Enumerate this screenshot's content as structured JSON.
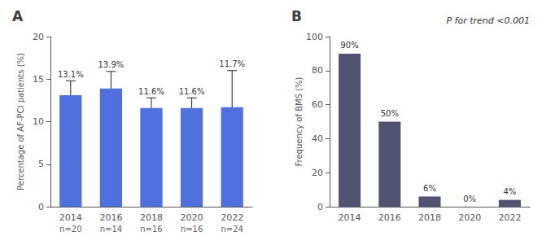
{
  "chart_data": [
    {
      "type": "bar",
      "title": "A",
      "categories": [
        "2014",
        "2016",
        "2018",
        "2020",
        "2022"
      ],
      "values": [
        13.1,
        13.9,
        11.6,
        11.6,
        11.7
      ],
      "value_labels": [
        "13.1%",
        "13.9%",
        "11.6%",
        "11.6%",
        "11.7%"
      ],
      "data_labels": true,
      "errors_lower": [
        1.1,
        1.4,
        1.0,
        1.0,
        1.2
      ],
      "errors_upper": [
        1.7,
        2.0,
        1.2,
        1.2,
        4.3
      ],
      "n_labels": [
        "n=20",
        "n=14",
        "n=16",
        "n=16",
        "n=24"
      ],
      "ylabel": "Percentage of AF-PCI patients (%)",
      "ylim": [
        0,
        20
      ],
      "yticks": [
        0,
        5,
        10,
        15,
        20
      ],
      "grid": false
    },
    {
      "type": "bar",
      "title": "B",
      "categories": [
        "2014",
        "2016",
        "2018",
        "2020",
        "2022"
      ],
      "values": [
        90,
        50,
        6,
        0,
        4
      ],
      "value_labels": [
        "90%",
        "50%",
        "6%",
        "0%",
        "4%"
      ],
      "data_labels": true,
      "ylabel": "Frequency of BMS (%)",
      "annotation": "P for trend <0.001",
      "ylim": [
        0,
        100
      ],
      "yticks": [
        0,
        20,
        40,
        60,
        80,
        100
      ],
      "grid": false
    }
  ]
}
